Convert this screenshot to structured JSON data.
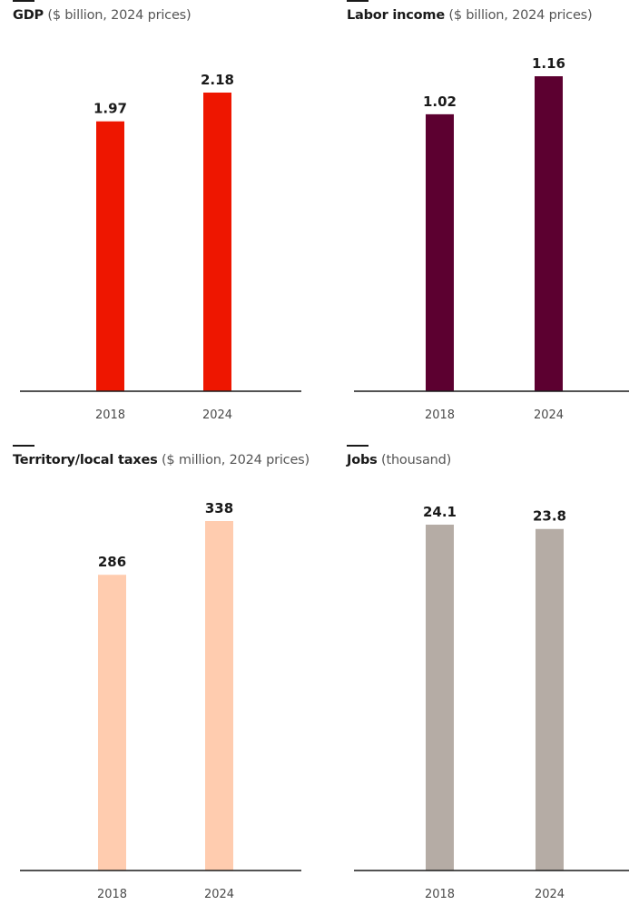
{
  "chart_data": [
    {
      "type": "bar",
      "title": "GDP",
      "subtitle": "($ billion, 2024 prices)",
      "categories": [
        "2018",
        "2024"
      ],
      "values": [
        1.97,
        2.18
      ],
      "value_labels": [
        "1.97",
        "2.18"
      ],
      "color": "#ee1600",
      "ylim": [
        0,
        2.18
      ]
    },
    {
      "type": "bar",
      "title": "Labor income",
      "subtitle": "($ billion, 2024 prices)",
      "categories": [
        "2018",
        "2024"
      ],
      "values": [
        1.02,
        1.16
      ],
      "value_labels": [
        "1.02",
        "1.16"
      ],
      "color": "#5c0030",
      "ylim": [
        0,
        1.16
      ]
    },
    {
      "type": "bar",
      "title": "Territory/local taxes",
      "subtitle": "($ million, 2024 prices)",
      "categories": [
        "2018",
        "2024"
      ],
      "values": [
        286,
        338
      ],
      "value_labels": [
        "286",
        "338"
      ],
      "color": "#ffccaf",
      "ylim": [
        0,
        338
      ]
    },
    {
      "type": "bar",
      "title": "Jobs",
      "subtitle": "(thousand)",
      "categories": [
        "2018",
        "2024"
      ],
      "values": [
        24.1,
        23.8
      ],
      "value_labels": [
        "24.1",
        "23.8"
      ],
      "color": "#b5aca5",
      "ylim": [
        0,
        24.1
      ]
    }
  ]
}
